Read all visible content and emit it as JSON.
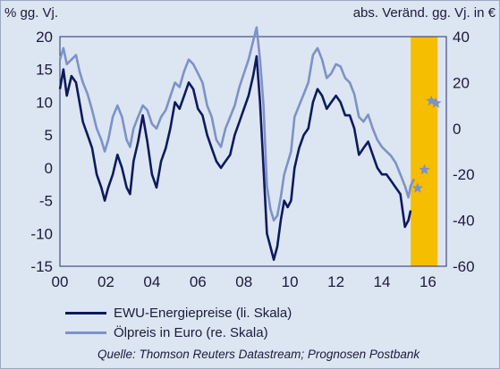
{
  "chart_data": {
    "type": "line",
    "left_axis_title": "% gg. Vj.",
    "right_axis_title": "abs. Veränd. gg. Vj. in €",
    "left_ylim": [
      -15,
      20
    ],
    "right_ylim": [
      -60,
      40
    ],
    "left_ticks": [
      "20",
      "15",
      "10",
      "5",
      "0",
      "-5",
      "-10",
      "-15"
    ],
    "right_ticks": [
      "40",
      "20",
      "0",
      "-20",
      "-40",
      "-60"
    ],
    "xlim": [
      2000,
      2016.8
    ],
    "x_ticks": [
      "00",
      "02",
      "04",
      "06",
      "08",
      "10",
      "12",
      "14",
      "16"
    ],
    "forecast_span": [
      2015.25,
      2016.42
    ],
    "colors": {
      "background": "#dce5f2",
      "forecast": "#f6be00",
      "energy": "#0e1a5c",
      "oil": "#7d92c6"
    },
    "series": [
      {
        "name": "EWU-Energiepreise (li. Skala)",
        "axis": "left",
        "x": [
          2000.0,
          2000.15,
          2000.3,
          2000.5,
          2000.7,
          2000.85,
          2001.0,
          2001.2,
          2001.4,
          2001.6,
          2001.8,
          2001.95,
          2002.1,
          2002.3,
          2002.5,
          2002.7,
          2002.9,
          2003.05,
          2003.2,
          2003.4,
          2003.6,
          2003.8,
          2004.0,
          2004.2,
          2004.4,
          2004.6,
          2004.8,
          2005.0,
          2005.2,
          2005.4,
          2005.6,
          2005.8,
          2006.0,
          2006.2,
          2006.4,
          2006.6,
          2006.8,
          2007.0,
          2007.2,
          2007.4,
          2007.6,
          2007.8,
          2008.0,
          2008.2,
          2008.4,
          2008.55,
          2008.7,
          2008.85,
          2009.0,
          2009.15,
          2009.3,
          2009.45,
          2009.6,
          2009.75,
          2009.9,
          2010.05,
          2010.2,
          2010.4,
          2010.6,
          2010.8,
          2011.0,
          2011.2,
          2011.4,
          2011.6,
          2011.8,
          2012.0,
          2012.2,
          2012.4,
          2012.6,
          2012.8,
          2013.0,
          2013.2,
          2013.4,
          2013.6,
          2013.8,
          2014.0,
          2014.2,
          2014.4,
          2014.6,
          2014.8,
          2015.0,
          2015.15,
          2015.25
        ],
        "values": [
          12,
          15,
          11,
          14,
          13,
          10,
          7,
          5,
          3,
          -1,
          -3,
          -5,
          -3,
          -1,
          2,
          0,
          -3,
          -4,
          1,
          4,
          8,
          4,
          -1,
          -3,
          1,
          3,
          6,
          10,
          9,
          11,
          13,
          12,
          9,
          8,
          5,
          3,
          1,
          0,
          1,
          2,
          5,
          7,
          9,
          11,
          14,
          17,
          10,
          0,
          -10,
          -12,
          -14,
          -12,
          -8,
          -5,
          -6,
          -5,
          0,
          3,
          5,
          6,
          10,
          12,
          11,
          9,
          10,
          11,
          10,
          8,
          8,
          6,
          2,
          3,
          4,
          2,
          0,
          -1,
          -1,
          -2,
          -3,
          -4,
          -9,
          -8,
          -6.5
        ]
      },
      {
        "name": "Ölpreis in Euro (re. Skala)",
        "axis": "right",
        "x": [
          2000.0,
          2000.15,
          2000.3,
          2000.5,
          2000.7,
          2000.85,
          2001.0,
          2001.2,
          2001.4,
          2001.6,
          2001.8,
          2001.95,
          2002.1,
          2002.3,
          2002.5,
          2002.7,
          2002.9,
          2003.05,
          2003.2,
          2003.4,
          2003.6,
          2003.8,
          2004.0,
          2004.2,
          2004.4,
          2004.6,
          2004.8,
          2005.0,
          2005.2,
          2005.4,
          2005.6,
          2005.8,
          2006.0,
          2006.2,
          2006.4,
          2006.6,
          2006.8,
          2007.0,
          2007.2,
          2007.4,
          2007.6,
          2007.8,
          2008.0,
          2008.2,
          2008.4,
          2008.55,
          2008.7,
          2008.85,
          2009.0,
          2009.15,
          2009.3,
          2009.45,
          2009.6,
          2009.75,
          2009.9,
          2010.05,
          2010.2,
          2010.4,
          2010.6,
          2010.8,
          2011.0,
          2011.2,
          2011.4,
          2011.6,
          2011.8,
          2012.0,
          2012.2,
          2012.4,
          2012.6,
          2012.8,
          2013.0,
          2013.2,
          2013.4,
          2013.6,
          2013.8,
          2014.0,
          2014.2,
          2014.4,
          2014.6,
          2014.8,
          2015.0,
          2015.15,
          2015.25,
          2015.4
        ],
        "values": [
          30,
          35,
          28,
          30,
          32,
          25,
          20,
          15,
          8,
          0,
          -5,
          -10,
          -5,
          5,
          10,
          5,
          -5,
          -8,
          0,
          5,
          10,
          8,
          2,
          0,
          5,
          8,
          14,
          20,
          18,
          25,
          30,
          28,
          24,
          20,
          10,
          5,
          -5,
          -8,
          0,
          5,
          10,
          18,
          24,
          30,
          38,
          44,
          30,
          10,
          -25,
          -35,
          -40,
          -38,
          -30,
          -20,
          -15,
          -10,
          5,
          10,
          15,
          20,
          32,
          35,
          30,
          22,
          24,
          28,
          27,
          22,
          20,
          15,
          5,
          3,
          6,
          0,
          -5,
          -8,
          -10,
          -12,
          -15,
          -20,
          -25,
          -30,
          -25,
          -22
        ]
      }
    ],
    "forecast_points": [
      {
        "x": 2015.55,
        "value": -26,
        "axis": "right"
      },
      {
        "x": 2015.85,
        "value": -18,
        "axis": "right"
      },
      {
        "x": 2016.15,
        "value": 12,
        "axis": "right"
      },
      {
        "x": 2016.35,
        "value": 11,
        "axis": "right"
      }
    ]
  },
  "legend": {
    "energy": "EWU-Energiepreise (li. Skala)",
    "oil": "Ölpreis in Euro (re. Skala)"
  },
  "source": "Quelle: Thomson Reuters Datastream; Prognosen Postbank"
}
